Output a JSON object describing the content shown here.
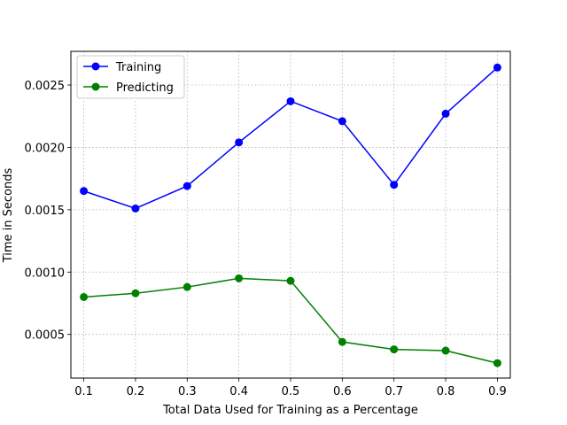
{
  "chart_data": {
    "type": "line",
    "title": "",
    "xlabel": "Total Data Used for Training as a Percentage",
    "ylabel": "Time in Seconds",
    "x": [
      0.1,
      0.2,
      0.3,
      0.4,
      0.5,
      0.6,
      0.7,
      0.8,
      0.9
    ],
    "xlim": [
      0.075,
      0.925
    ],
    "ylim": [
      0.00015,
      0.00277
    ],
    "x_ticks": [
      "0.1",
      "0.2",
      "0.3",
      "0.4",
      "0.5",
      "0.6",
      "0.7",
      "0.8",
      "0.9"
    ],
    "y_ticks": [
      "0.0005",
      "0.0010",
      "0.0015",
      "0.0020",
      "0.0025"
    ],
    "grid": true,
    "legend_position": "top-left",
    "series": [
      {
        "name": "Training",
        "color": "#0000ff",
        "values": [
          0.00165,
          0.00151,
          0.00169,
          0.00204,
          0.00237,
          0.00221,
          0.0017,
          0.00227,
          0.00264
        ]
      },
      {
        "name": "Predicting",
        "color": "#008000",
        "values": [
          0.0008,
          0.00083,
          0.00088,
          0.00095,
          0.00093,
          0.00044,
          0.00038,
          0.00037,
          0.00027
        ]
      }
    ]
  }
}
